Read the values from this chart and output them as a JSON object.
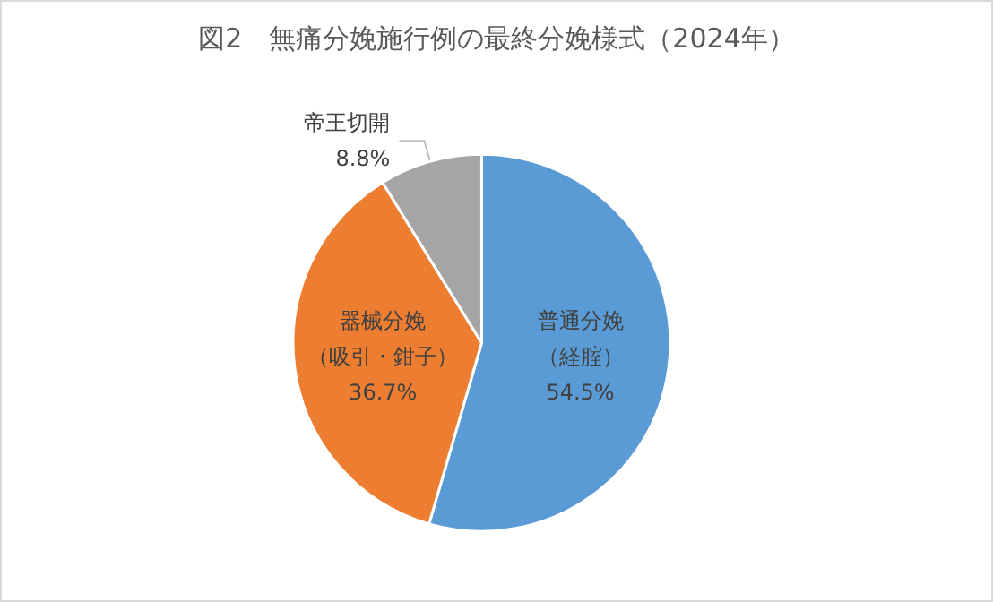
{
  "chart_data": {
    "type": "pie",
    "title": "図2　無痛分娩施行例の最終分娩様式（2024年）",
    "categories": [
      "普通分娩（経腟）",
      "器械分娩（吸引・鉗子）",
      "帝王切開"
    ],
    "values": [
      54.5,
      36.7,
      8.8
    ],
    "value_labels": [
      "54.5%",
      "36.7%",
      "8.8%"
    ],
    "colors": [
      "#5b9bd5",
      "#ed7d31",
      "#a5a5a5"
    ],
    "legend": false
  }
}
